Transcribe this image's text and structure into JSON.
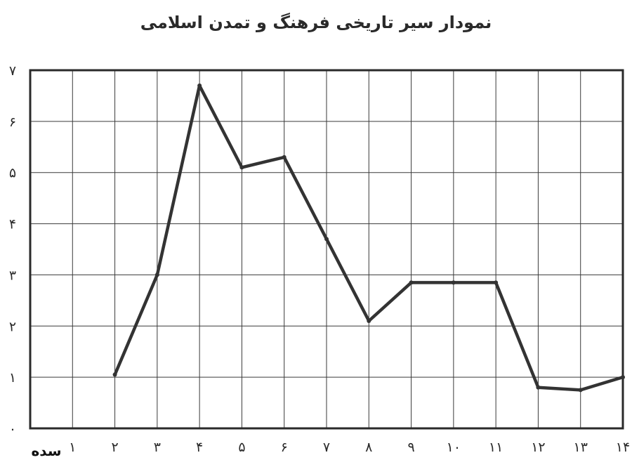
{
  "chart_data": {
    "type": "line",
    "title": "نمودار سیر تاریخی فرهنگ و تمدن اسلامی",
    "xlabel": "سده",
    "ylabel": "",
    "x": [
      2,
      3,
      4,
      5,
      6,
      7,
      8,
      9,
      10,
      11,
      12,
      13,
      14
    ],
    "series": [
      {
        "values": [
          1.05,
          3.0,
          6.7,
          5.1,
          5.3,
          3.7,
          2.1,
          2.85,
          2.85,
          2.85,
          0.8,
          0.75,
          1.0
        ]
      }
    ],
    "xlim": [
      0,
      14
    ],
    "ylim": [
      0,
      7
    ],
    "x_tick_labels": [
      "۱",
      "۲",
      "۳",
      "۴",
      "۵",
      "۶",
      "۷",
      "۸",
      "۹",
      "۱۰",
      "۱۱",
      "۱۲",
      "۱۳",
      "۱۴"
    ],
    "y_tick_labels": [
      "٠",
      "۱",
      "۲",
      "۳",
      "۴",
      "۵",
      "۶",
      "۷"
    ],
    "grid": true,
    "legend": "none",
    "line_color": "#333333"
  }
}
